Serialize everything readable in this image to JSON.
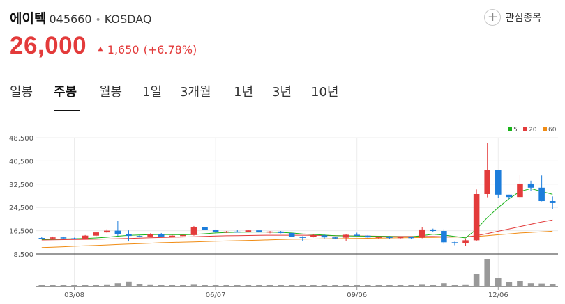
{
  "stock": {
    "name": "에이텍",
    "code": "045660",
    "separator": "•",
    "market": "KOSDAQ",
    "price": "26,000",
    "change": "1,650",
    "change_pct": "(+6.78%)",
    "up_color": "#e33b3b",
    "up_icon": "triangle-up-icon"
  },
  "favorite": {
    "label": "관심종목",
    "icon": "plus-icon"
  },
  "tabs": [
    {
      "label": "일봉",
      "active": false
    },
    {
      "label": "주봉",
      "active": true
    },
    {
      "label": "월봉",
      "active": false
    },
    {
      "label": "1일",
      "active": false
    },
    {
      "label": "3개월",
      "active": false
    },
    {
      "label": "1년",
      "active": false
    },
    {
      "label": "3년",
      "active": false
    },
    {
      "label": "10년",
      "active": false
    }
  ],
  "chart_data": {
    "type": "candlestick",
    "y_ticks": [
      "48,500",
      "40,500",
      "32,500",
      "24,500",
      "16,500",
      "8,500"
    ],
    "ylim": [
      8500,
      48500
    ],
    "x_labels": [
      "03/08",
      "06/07",
      "09/06",
      "12/06"
    ],
    "legend": [
      {
        "label": "5",
        "color": "#19b319"
      },
      {
        "label": "20",
        "color": "#e33b3b"
      },
      {
        "label": "60",
        "color": "#f08c14"
      }
    ],
    "up_color": "#e33b3b",
    "down_color": "#1c7ddb",
    "volume_color": "#999999",
    "candles": [
      [
        14000,
        14300,
        13600,
        13800
      ],
      [
        13800,
        14500,
        13400,
        14200
      ],
      [
        14200,
        14500,
        13700,
        13900
      ],
      [
        13900,
        14100,
        13500,
        13700
      ],
      [
        13700,
        15000,
        13600,
        14800
      ],
      [
        14800,
        16100,
        14600,
        15900
      ],
      [
        15900,
        17000,
        15700,
        16500
      ],
      [
        16500,
        19800,
        14700,
        15300
      ],
      [
        15300,
        16600,
        12800,
        14700
      ],
      [
        14700,
        14900,
        14200,
        14500
      ],
      [
        14500,
        15600,
        14400,
        15300
      ],
      [
        15300,
        15700,
        14300,
        14500
      ],
      [
        14500,
        15100,
        14300,
        14800
      ],
      [
        14800,
        15200,
        14500,
        15000
      ],
      [
        15000,
        18100,
        14800,
        17700
      ],
      [
        17700,
        17800,
        16700,
        16700
      ],
      [
        16700,
        16900,
        15800,
        16000
      ],
      [
        16000,
        16400,
        15700,
        16200
      ],
      [
        16200,
        16700,
        15900,
        16000
      ],
      [
        16000,
        16700,
        15900,
        16600
      ],
      [
        16600,
        16800,
        15700,
        15900
      ],
      [
        15900,
        16400,
        15600,
        16200
      ],
      [
        16200,
        16400,
        15600,
        15700
      ],
      [
        15700,
        15800,
        14300,
        14400
      ],
      [
        14400,
        14600,
        12900,
        14300
      ],
      [
        14300,
        15400,
        14200,
        14900
      ],
      [
        14900,
        15200,
        13800,
        14200
      ],
      [
        14200,
        14400,
        13700,
        14100
      ],
      [
        14100,
        15300,
        13000,
        15100
      ],
      [
        15100,
        15800,
        14800,
        14800
      ],
      [
        14800,
        15000,
        13900,
        14200
      ],
      [
        14200,
        14500,
        13700,
        14400
      ],
      [
        14400,
        14700,
        13600,
        14000
      ],
      [
        14000,
        14500,
        13800,
        14300
      ],
      [
        14300,
        14500,
        13600,
        14100
      ],
      [
        14100,
        17700,
        13900,
        16900
      ],
      [
        16900,
        17200,
        16100,
        16400
      ],
      [
        16400,
        17000,
        11900,
        12500
      ],
      [
        12500,
        12700,
        11500,
        12100
      ],
      [
        12100,
        13800,
        11300,
        13200
      ],
      [
        13200,
        30700,
        13000,
        29100
      ],
      [
        29100,
        46700,
        28000,
        37300
      ],
      [
        37300,
        37300,
        27700,
        28900
      ],
      [
        28900,
        28900,
        27400,
        28100
      ],
      [
        28100,
        35600,
        27300,
        32700
      ],
      [
        32700,
        33700,
        30300,
        31300
      ],
      [
        31300,
        35500,
        26600,
        26700
      ],
      [
        26700,
        28300,
        24000,
        26000
      ]
    ],
    "ma5": [
      13500,
      13550,
      13650,
      13750,
      13850,
      14000,
      14250,
      14600,
      14900,
      15050,
      15150,
      15200,
      15150,
      15100,
      15200,
      15450,
      15700,
      15850,
      15950,
      16000,
      16050,
      16000,
      15900,
      15700,
      15400,
      15200,
      15000,
      14800,
      14700,
      14650,
      14600,
      14550,
      14500,
      14400,
      14400,
      14800,
      15300,
      15000,
      14500,
      14000,
      17000,
      21000,
      24500,
      27500,
      30000,
      31000,
      30000,
      29000
    ],
    "ma20": [
      13300,
      13350,
      13400,
      13450,
      13500,
      13550,
      13650,
      13750,
      13850,
      13950,
      14050,
      14150,
      14250,
      14350,
      14450,
      14550,
      14650,
      14750,
      14800,
      14850,
      14900,
      14950,
      14950,
      14950,
      14950,
      14900,
      14850,
      14800,
      14750,
      14700,
      14650,
      14600,
      14550,
      14500,
      14500,
      14500,
      14500,
      14450,
      14400,
      14350,
      14800,
      15500,
      16300,
      17100,
      17900,
      18700,
      19500,
      20200
    ],
    "ma60": [
      10700,
      10850,
      11000,
      11150,
      11300,
      11450,
      11600,
      11750,
      11900,
      12050,
      12200,
      12350,
      12450,
      12550,
      12650,
      12750,
      12850,
      12950,
      13050,
      13150,
      13250,
      13350,
      13450,
      13550,
      13600,
      13650,
      13700,
      13750,
      13800,
      13850,
      13900,
      13950,
      14000,
      14050,
      14100,
      14150,
      14200,
      14250,
      14300,
      14350,
      14500,
      14800,
      15100,
      15400,
      15700,
      15900,
      16100,
      16300
    ],
    "volume": [
      5,
      5,
      5,
      5,
      6,
      7,
      8,
      12,
      18,
      10,
      8,
      7,
      6,
      6,
      9,
      7,
      6,
      5,
      5,
      5,
      5,
      5,
      6,
      5,
      5,
      5,
      5,
      5,
      5,
      5,
      5,
      5,
      5,
      5,
      5,
      9,
      7,
      12,
      5,
      8,
      45,
      100,
      30,
      15,
      20,
      12,
      11,
      10
    ]
  }
}
